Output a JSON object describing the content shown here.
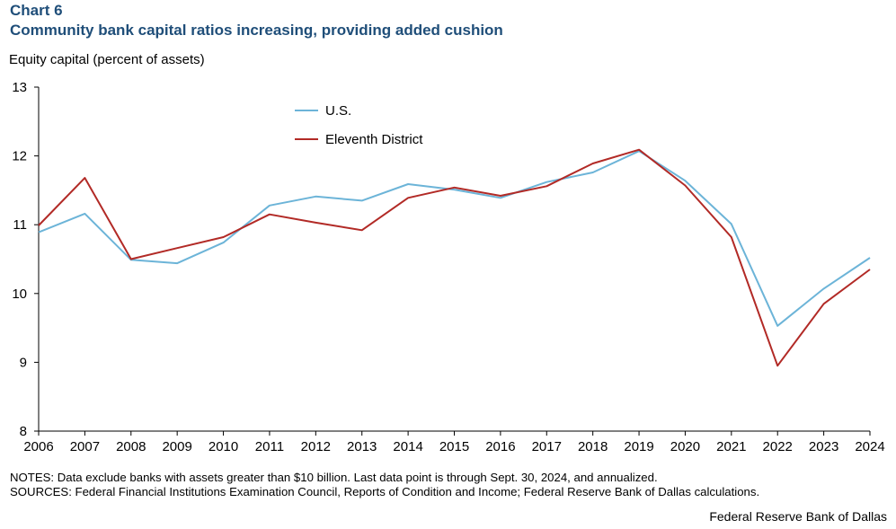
{
  "header": {
    "chart_number": "Chart 6",
    "title": "Community bank capital ratios increasing, providing added cushion"
  },
  "chart_data": {
    "type": "line",
    "title": "Community bank capital ratios increasing, providing added cushion",
    "ylabel": "Equity capital (percent of assets)",
    "xlabel": "",
    "ylim": [
      8,
      13
    ],
    "yticks": [
      8,
      9,
      10,
      11,
      12,
      13
    ],
    "x": [
      "2006",
      "2007",
      "2008",
      "2009",
      "2010",
      "2011",
      "2012",
      "2013",
      "2014",
      "2015",
      "2016",
      "2017",
      "2018",
      "2019",
      "2020",
      "2021",
      "2022",
      "2023",
      "2024"
    ],
    "series": [
      {
        "name": "U.S.",
        "color": "#6cb4d8",
        "values": [
          10.89,
          11.16,
          10.49,
          10.44,
          10.74,
          11.28,
          11.41,
          11.35,
          11.59,
          11.51,
          11.39,
          11.62,
          11.76,
          12.07,
          11.64,
          11.01,
          9.53,
          10.07,
          10.52
        ]
      },
      {
        "name": "Eleventh District",
        "color": "#b22a26",
        "values": [
          10.99,
          11.68,
          10.5,
          10.66,
          10.82,
          11.15,
          11.03,
          10.92,
          11.39,
          11.54,
          11.42,
          11.56,
          11.89,
          12.09,
          11.57,
          10.82,
          8.95,
          9.85,
          10.35
        ]
      }
    ],
    "legend_position": "top-center"
  },
  "footer": {
    "notes": "NOTES: Data exclude banks with assets greater than $10 billion. Last data point is through Sept. 30, 2024, and annualized.",
    "sources": "SOURCES: Federal Financial Institutions Examination Council, Reports of Condition and Income; Federal Reserve Bank of Dallas calculations.",
    "credit": "Federal Reserve Bank of Dallas"
  }
}
